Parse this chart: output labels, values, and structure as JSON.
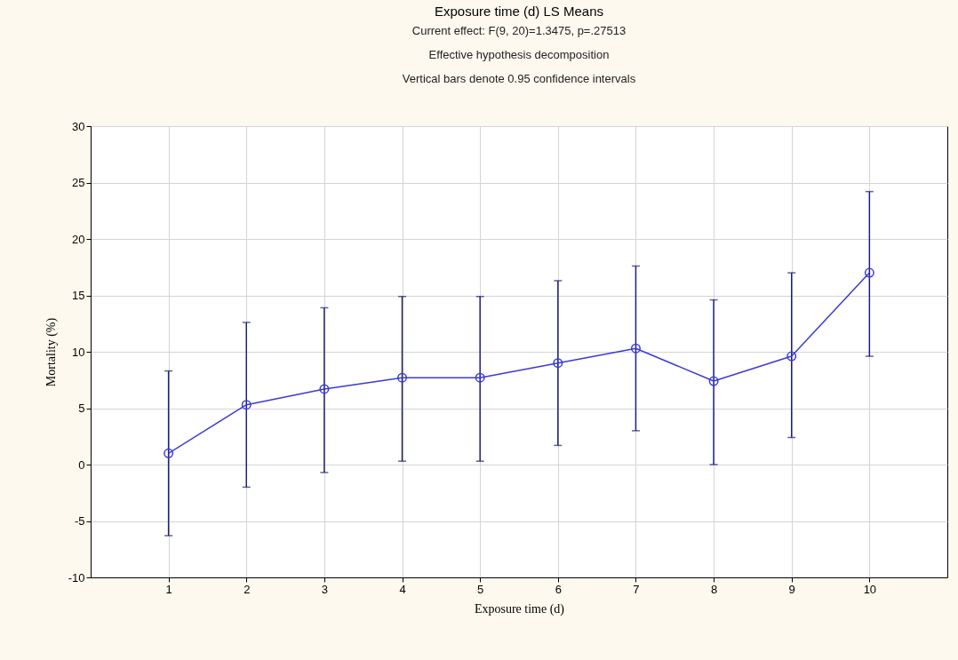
{
  "chart_data": {
    "type": "line",
    "title": "Exposure time (d) LS Means",
    "subtitle": "Current effect: F(9, 20)=1.3475, p=.27513",
    "annotations": [
      "Effective hypothesis decomposition",
      "Vertical bars denote 0.95 confidence intervals"
    ],
    "xlabel": "Exposure time (d)",
    "ylabel": "Mortality (%)",
    "x": [
      1,
      2,
      3,
      4,
      5,
      6,
      7,
      8,
      9,
      10
    ],
    "series": [
      {
        "color": "#3a3ad8",
        "values": [
          1.0,
          5.3,
          6.7,
          7.7,
          7.7,
          9.0,
          10.3,
          7.4,
          9.6,
          17.0
        ],
        "errors": [
          [
            -6.3,
            8.3
          ],
          [
            -2.0,
            12.6
          ],
          [
            -0.7,
            13.9
          ],
          [
            0.3,
            14.9
          ],
          [
            0.3,
            14.9
          ],
          [
            1.7,
            16.3
          ],
          [
            3.0,
            17.6
          ],
          [
            0.0,
            14.6
          ],
          [
            2.4,
            17.0
          ],
          [
            9.6,
            24.2
          ]
        ]
      }
    ],
    "xlim": [
      0,
      11
    ],
    "xticks": [
      1,
      2,
      3,
      4,
      5,
      6,
      7,
      8,
      9,
      10
    ],
    "ylim": [
      -10,
      30
    ],
    "yticks": [
      -10,
      -5,
      0,
      5,
      10,
      15,
      20,
      25,
      30
    ],
    "grid": true,
    "marker": "circle",
    "line_style": "solid"
  }
}
